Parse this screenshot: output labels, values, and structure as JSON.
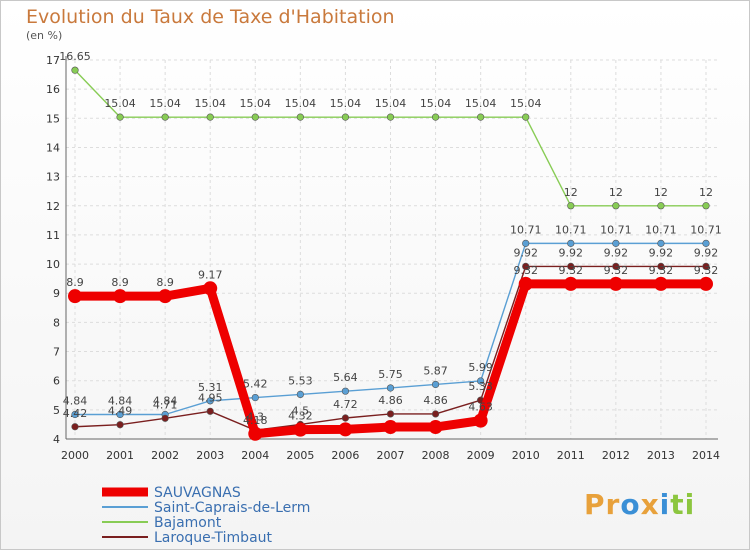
{
  "title": "Evolution du Taux de Taxe d'Habitation",
  "subtitle": "(en %)",
  "logo": {
    "text": "Proxiti",
    "letters": [
      "P",
      "r",
      "o",
      "x",
      "i",
      "t",
      "i"
    ],
    "colors": [
      "#e8a13b",
      "#e8a13b",
      "#3a8fd6",
      "#e8a13b",
      "#3a8fd6",
      "#8cc63f",
      "#8cc63f"
    ]
  },
  "chart_data": {
    "type": "line",
    "x": [
      "2000",
      "2001",
      "2002",
      "2003",
      "2004",
      "2005",
      "2006",
      "2007",
      "2008",
      "2009",
      "2010",
      "2011",
      "2012",
      "2013",
      "2014"
    ],
    "ylim": [
      4,
      17
    ],
    "yticks": [
      4,
      5,
      6,
      7,
      8,
      9,
      10,
      11,
      12,
      13,
      14,
      15,
      16,
      17
    ],
    "grid": true,
    "legend": "bottom-left",
    "series": [
      {
        "name": "SAUVAGNAS",
        "color": "#ee0000",
        "values": [
          8.9,
          8.9,
          8.9,
          9.17,
          4.18,
          4.32,
          4.33,
          4.41,
          4.41,
          4.63,
          9.32,
          9.32,
          9.32,
          9.32,
          9.32
        ],
        "labels": [
          "8.9",
          "8.9",
          "8.9",
          "9.17",
          "4.18",
          "4.32",
          "",
          "",
          "",
          "4.63",
          "9.32",
          "9.32",
          "9.32",
          "9.32",
          "9.32"
        ]
      },
      {
        "name": "Saint-Caprais-de-Lerm",
        "color": "#5a9fd4",
        "values": [
          4.84,
          4.84,
          4.84,
          5.31,
          5.42,
          5.53,
          5.64,
          5.75,
          5.87,
          5.99,
          10.71,
          10.71,
          10.71,
          10.71,
          10.71
        ],
        "labels": [
          "4.84",
          "4.84",
          "4.84",
          "5.31",
          "5.42",
          "5.53",
          "5.64",
          "5.75",
          "5.87",
          "5.99",
          "10.71",
          "10.71",
          "10.71",
          "10.71",
          "10.71"
        ]
      },
      {
        "name": "Bajamont",
        "color": "#88cc55",
        "values": [
          16.65,
          15.04,
          15.04,
          15.04,
          15.04,
          15.04,
          15.04,
          15.04,
          15.04,
          15.04,
          15.04,
          12,
          12,
          12,
          12
        ],
        "labels": [
          "16.65",
          "15.04",
          "15.04",
          "15.04",
          "15.04",
          "15.04",
          "15.04",
          "15.04",
          "15.04",
          "15.04",
          "15.04",
          "12",
          "12",
          "12",
          "12"
        ]
      },
      {
        "name": "Laroque-Timbaut",
        "color": "#7a1f1f",
        "values": [
          4.42,
          4.49,
          4.71,
          4.95,
          4.3,
          4.5,
          4.72,
          4.86,
          4.86,
          5.33,
          9.92,
          9.92,
          9.92,
          9.92,
          9.92
        ],
        "labels": [
          "4.42",
          "4.49",
          "4.71",
          "4.95",
          "4.3",
          "4.5",
          "4.72",
          "4.86",
          "4.86",
          "5.33",
          "9.92",
          "9.92",
          "9.92",
          "9.92",
          "9.92"
        ]
      }
    ]
  }
}
